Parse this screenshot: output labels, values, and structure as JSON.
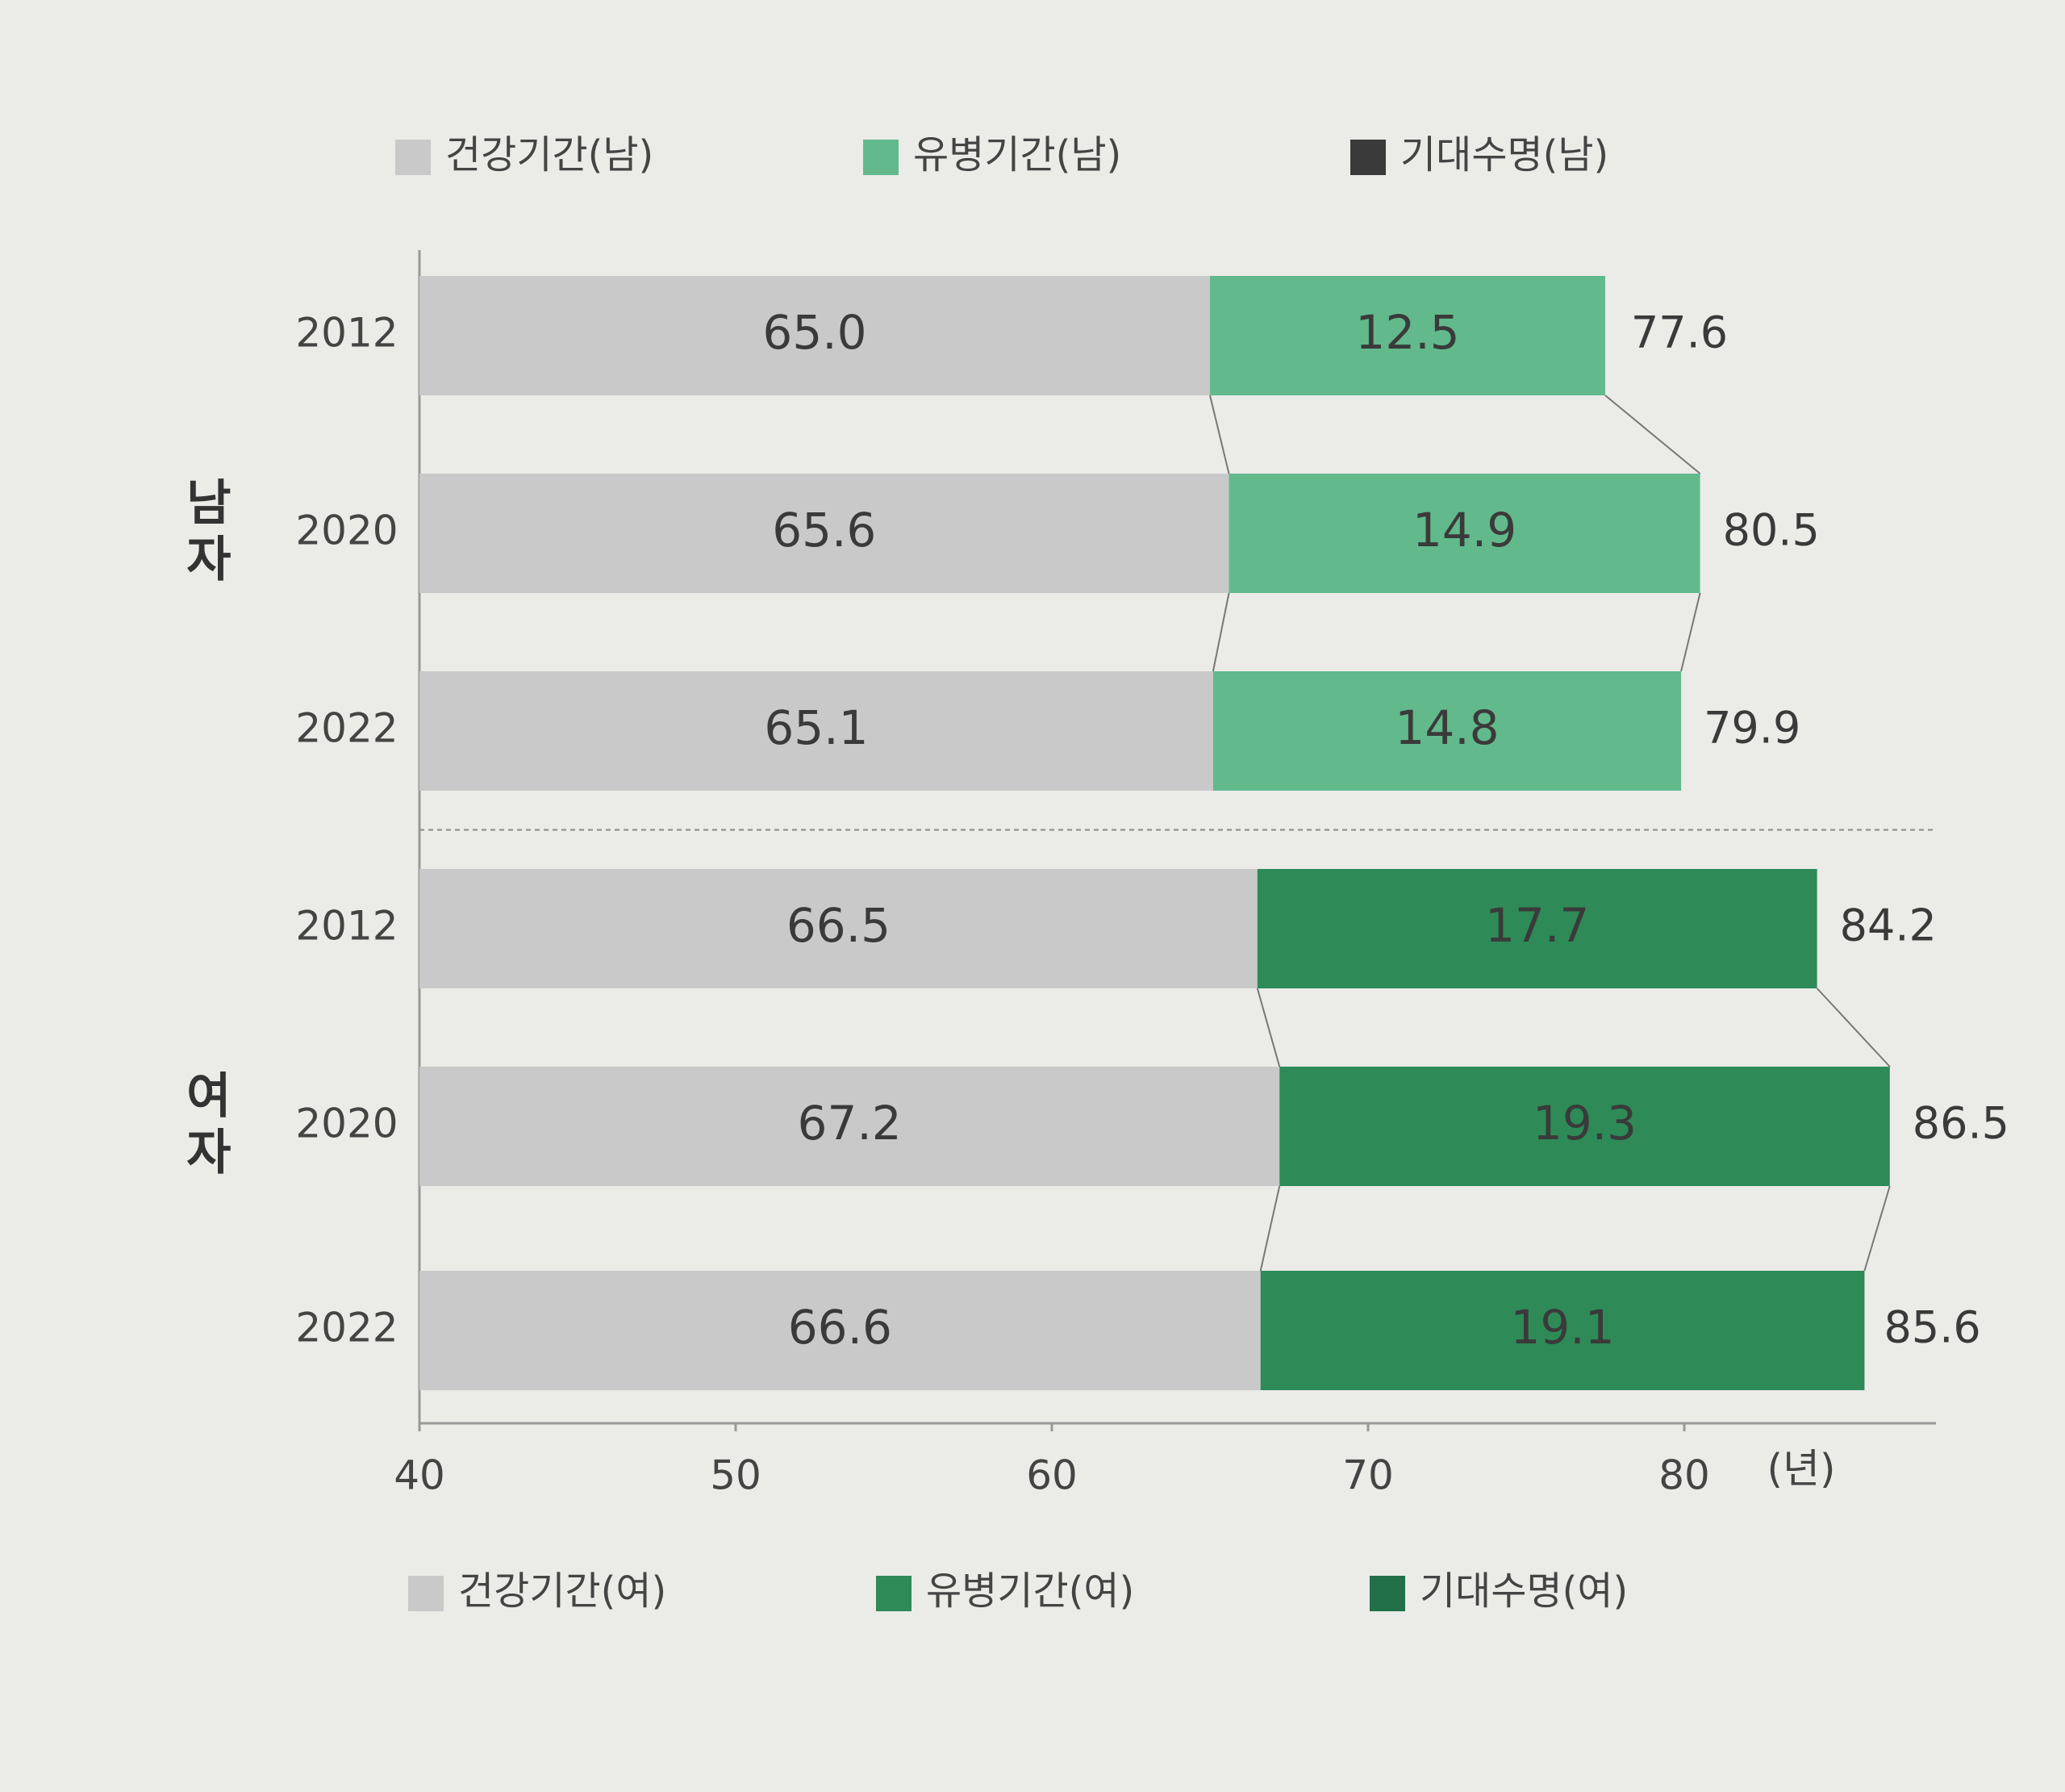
{
  "chart_data": {
    "type": "bar",
    "orientation": "horizontal",
    "categories": [
      "2012",
      "2020",
      "2022",
      "2012",
      "2020",
      "2022"
    ],
    "group_labels": [
      "남자",
      "여자"
    ],
    "series": [
      {
        "name": "건강기간(남)",
        "color": "#c9c9c9",
        "label_color": "#333333",
        "kind": "segment",
        "values": [
          65.0,
          65.6,
          65.1,
          null,
          null,
          null
        ],
        "value_labels": [
          "65.0",
          "65.6",
          "65.1",
          null,
          null,
          null
        ]
      },
      {
        "name": "유병기간(남)",
        "color": "#62b98c",
        "label_color": "#ffffff",
        "kind": "segment",
        "values": [
          12.5,
          14.9,
          14.8,
          null,
          null,
          null
        ],
        "value_labels": [
          "12.5",
          "14.9",
          "14.8",
          null,
          null,
          null
        ]
      },
      {
        "name": "기대수명(남)",
        "color": "#3a3a3a",
        "label_color": "#3a3a3a",
        "kind": "total",
        "values": [
          77.6,
          80.5,
          79.9,
          null,
          null,
          null
        ],
        "value_labels": [
          "77.6",
          "80.5",
          "79.9",
          null,
          null,
          null
        ]
      },
      {
        "name": "건강기간(여)",
        "color": "#c9c9c9",
        "label_color": "#333333",
        "kind": "segment",
        "values": [
          null,
          null,
          null,
          66.5,
          67.2,
          66.6
        ],
        "value_labels": [
          null,
          null,
          null,
          "66.5",
          "67.2",
          "66.6"
        ]
      },
      {
        "name": "유병기간(여)",
        "color": "#2e8a57",
        "label_color": "#ffffff",
        "kind": "segment",
        "values": [
          null,
          null,
          null,
          17.7,
          19.3,
          19.1
        ],
        "value_labels": [
          null,
          null,
          null,
          "17.7",
          "19.3",
          "19.1"
        ]
      },
      {
        "name": "기대수명(여)",
        "color": "#22704a",
        "label_color": "#2a7a4f",
        "kind": "total",
        "values": [
          null,
          null,
          null,
          84.2,
          86.5,
          85.6
        ],
        "value_labels": [
          null,
          null,
          null,
          "84.2",
          "86.5",
          "85.6"
        ]
      }
    ],
    "xlim": [
      40,
      90
    ],
    "xticks": [
      40,
      50,
      60,
      70,
      80
    ],
    "x_unit_label": "(년)"
  }
}
